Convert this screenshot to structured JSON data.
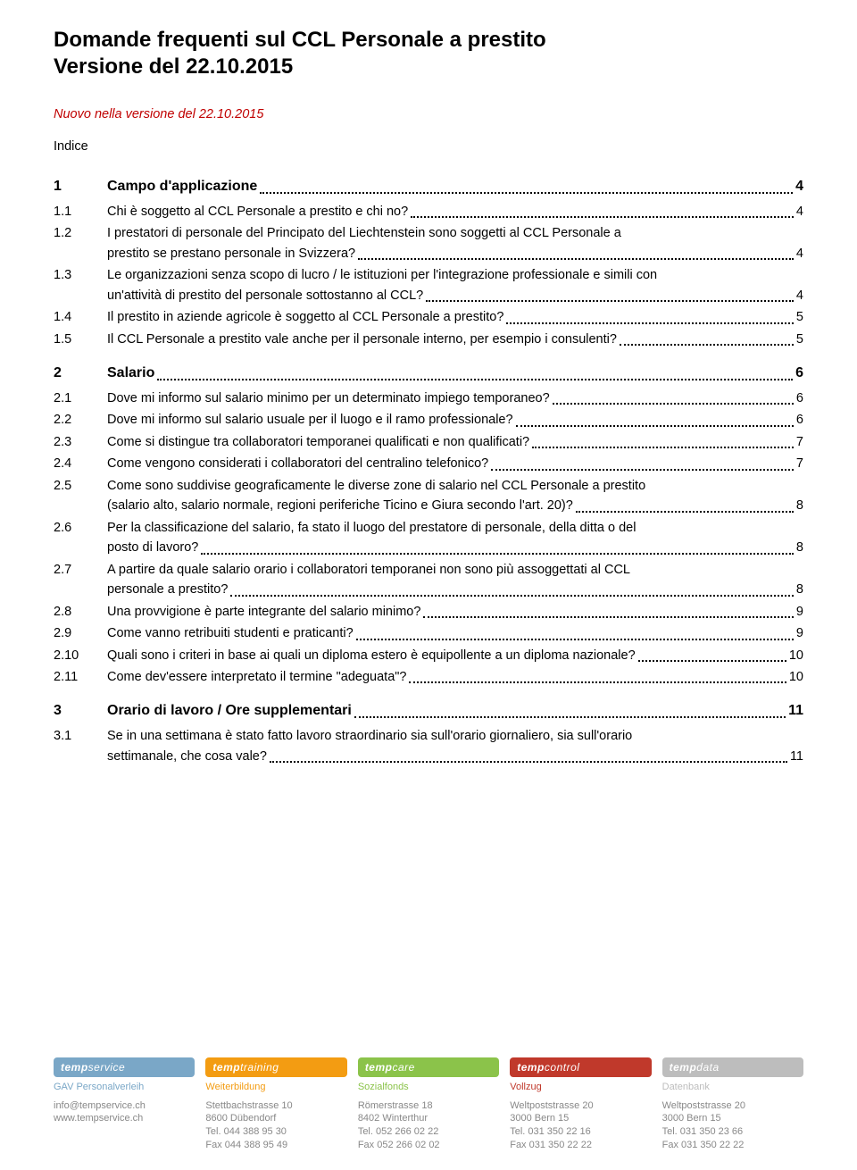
{
  "title_line1": "Domande frequenti sul CCL Personale a prestito",
  "title_line2": "Versione del 22.10.2015",
  "version_note": "Nuovo nella versione del 22.10.2015",
  "indice_label": "Indice",
  "toc": [
    {
      "type": "heading",
      "num": "1",
      "text": "Campo d'applicazione",
      "page": "4"
    },
    {
      "type": "item",
      "num": "1.1",
      "text": "Chi è soggetto al CCL Personale a prestito e chi no?",
      "page": "4"
    },
    {
      "type": "multi",
      "num": "1.2",
      "line1": "I prestatori di personale del Principato del Liechtenstein sono soggetti al CCL Personale a",
      "line2": "prestito se prestano personale in Svizzera?",
      "page": "4"
    },
    {
      "type": "multi",
      "num": "1.3",
      "line1": "Le organizzazioni senza scopo di lucro / le istituzioni per l'integrazione professionale e simili con",
      "line2": "un'attività di prestito del personale sottostanno al CCL?",
      "page": "4"
    },
    {
      "type": "item",
      "num": "1.4",
      "text": "Il prestito in aziende agricole è soggetto al CCL Personale a prestito?",
      "page": "5"
    },
    {
      "type": "item",
      "num": "1.5",
      "text": "Il CCL Personale a prestito vale anche per il personale interno, per esempio i consulenti?",
      "page": "5"
    },
    {
      "type": "heading",
      "num": "2",
      "text": "Salario",
      "page": "6"
    },
    {
      "type": "item",
      "num": "2.1",
      "text": "Dove mi informo sul salario minimo per un determinato impiego temporaneo?",
      "page": "6"
    },
    {
      "type": "item",
      "num": "2.2",
      "text": "Dove mi informo sul salario usuale per il luogo e il ramo professionale?",
      "page": "6"
    },
    {
      "type": "item",
      "num": "2.3",
      "text": "Come si distingue tra collaboratori temporanei qualificati e non qualificati?",
      "page": "7"
    },
    {
      "type": "item",
      "num": "2.4",
      "text": "Come vengono considerati i collaboratori del centralino telefonico?",
      "page": "7"
    },
    {
      "type": "multi",
      "num": "2.5",
      "line1": "Come sono suddivise geograficamente le diverse zone di salario nel CCL Personale a prestito",
      "line2": "(salario alto, salario normale, regioni periferiche Ticino e Giura secondo l'art. 20)?",
      "page": "8"
    },
    {
      "type": "multi",
      "num": "2.6",
      "line1": "Per la classificazione del salario, fa stato il luogo del prestatore di personale, della ditta o del",
      "line2": "posto di lavoro?",
      "page": "8"
    },
    {
      "type": "multi",
      "num": "2.7",
      "line1": "A partire da quale salario orario i collaboratori temporanei non sono più assoggettati al CCL",
      "line2": "personale a prestito?",
      "page": "8"
    },
    {
      "type": "item",
      "num": "2.8",
      "text": "Una provvigione è parte integrante del salario minimo?",
      "page": "9"
    },
    {
      "type": "item",
      "num": "2.9",
      "text": "Come vanno retribuiti studenti e praticanti?",
      "page": "9"
    },
    {
      "type": "item",
      "num": "2.10",
      "text": "Quali sono i criteri in base ai quali un diploma estero è equipollente a un diploma nazionale?",
      "page": "10"
    },
    {
      "type": "item",
      "num": "2.11",
      "text": "Come dev'essere interpretato il termine \"adeguata\"?",
      "page": "10"
    },
    {
      "type": "heading",
      "num": "3",
      "text": "Orario di lavoro / Ore supplementari",
      "page": "11"
    },
    {
      "type": "multi",
      "num": "3.1",
      "line1": "Se in una settimana è stato fatto lavoro straordinario sia sull'orario giornaliero, sia sull'orario",
      "line2": "settimanale, che cosa vale?",
      "page": "11"
    }
  ],
  "footer": {
    "left": {
      "brand_prefix": "temp",
      "brand_suffix": "service",
      "sub": "GAV Personalverleih",
      "l1": "info@tempservice.ch",
      "l2": "www.tempservice.ch"
    },
    "cols": [
      {
        "color": "#f39c12",
        "brand_prefix": "temp",
        "brand_suffix": "training",
        "sub": "Weiterbildung",
        "l1": "Stettbachstrasse 10",
        "l2": "8600 Dübendorf",
        "l3": "Tel. 044 388 95 30",
        "l4": "Fax 044 388 95 49"
      },
      {
        "color": "#8bc34a",
        "brand_prefix": "temp",
        "brand_suffix": "care",
        "sub": "Sozialfonds",
        "l1": "Römerstrasse 18",
        "l2": "8402 Winterthur",
        "l3": "Tel. 052 266 02 22",
        "l4": "Fax 052 266 02 02"
      },
      {
        "color": "#c0392b",
        "brand_prefix": "temp",
        "brand_suffix": "control",
        "sub": "Vollzug",
        "l1": "Weltpoststrasse 20",
        "l2": "3000 Bern 15",
        "l3": "Tel. 031 350 22 16",
        "l4": "Fax 031 350 22 22"
      },
      {
        "color": "#bdbdbd",
        "brand_prefix": "temp",
        "brand_suffix": "data",
        "sub": "Datenbank",
        "l1": "Weltpoststrasse 20",
        "l2": "3000 Bern 15",
        "l3": "Tel. 031 350 23 66",
        "l4": "Fax 031 350 22 22"
      }
    ]
  }
}
